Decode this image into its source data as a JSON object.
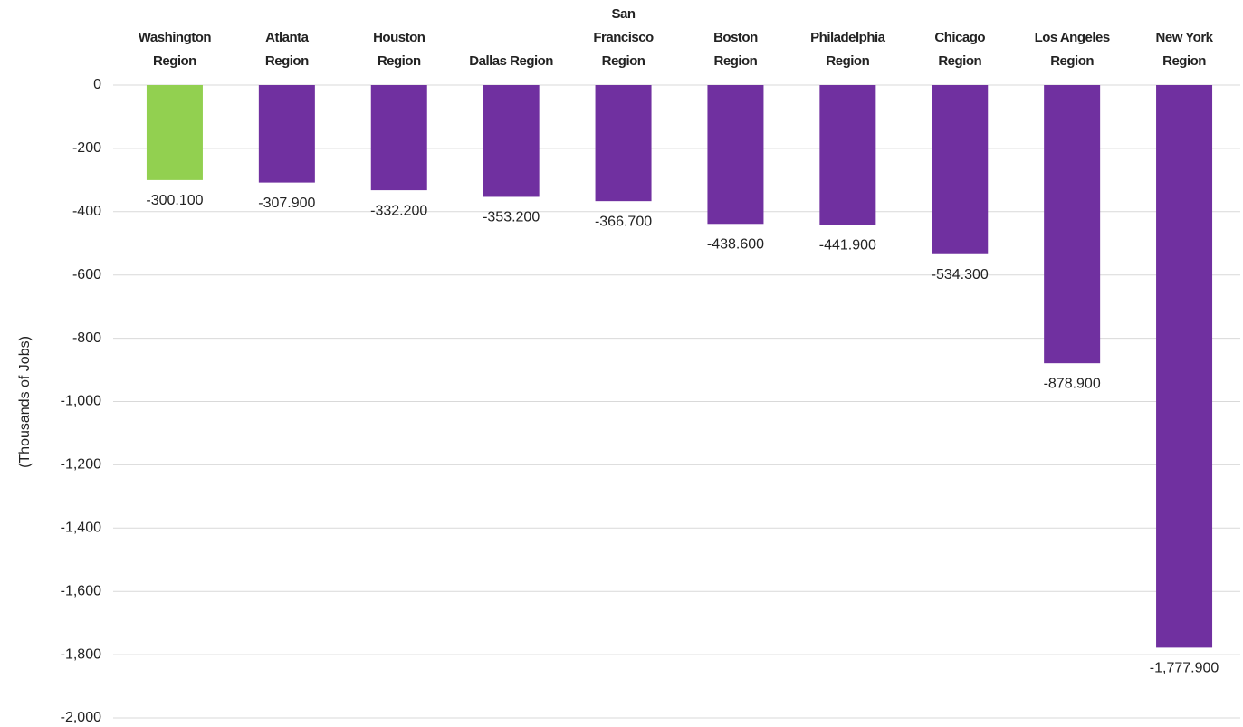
{
  "chart_data": {
    "type": "bar",
    "y_label": "(Thousands of Jobs)",
    "categories": [
      "Washington Region",
      "Atlanta Region",
      "Houston Region",
      "Dallas Region",
      "San Francisco Region",
      "Boston Region",
      "Philadelphia Region",
      "Chicago Region",
      "Los Angeles Region",
      "New York Region"
    ],
    "values": [
      -300.1,
      -307.9,
      -332.2,
      -353.2,
      -366.7,
      -438.6,
      -441.9,
      -534.3,
      -878.9,
      -1777.9
    ],
    "value_labels": [
      "-300.100",
      "-307.900",
      "-332.200",
      "-353.200",
      "-366.700",
      "-438.600",
      "-441.900",
      "-534.300",
      "-878.900",
      "-1,777.900"
    ],
    "colors": [
      "#92d050",
      "#7030a0",
      "#7030a0",
      "#7030a0",
      "#7030a0",
      "#7030a0",
      "#7030a0",
      "#7030a0",
      "#7030a0",
      "#7030a0"
    ],
    "ylim": [
      -2000,
      0
    ],
    "yticks": [
      0,
      -200,
      -400,
      -600,
      -800,
      {
        "value": -1000,
        "label": "-1,000"
      },
      {
        "value": -1200,
        "label": "-1,200"
      },
      {
        "value": -1400,
        "label": "-1,400"
      },
      {
        "value": -1600,
        "label": "-1,600"
      },
      {
        "value": -1800,
        "label": "-1,800"
      },
      {
        "value": -2000,
        "label": "-2,000"
      }
    ],
    "grid": true
  }
}
